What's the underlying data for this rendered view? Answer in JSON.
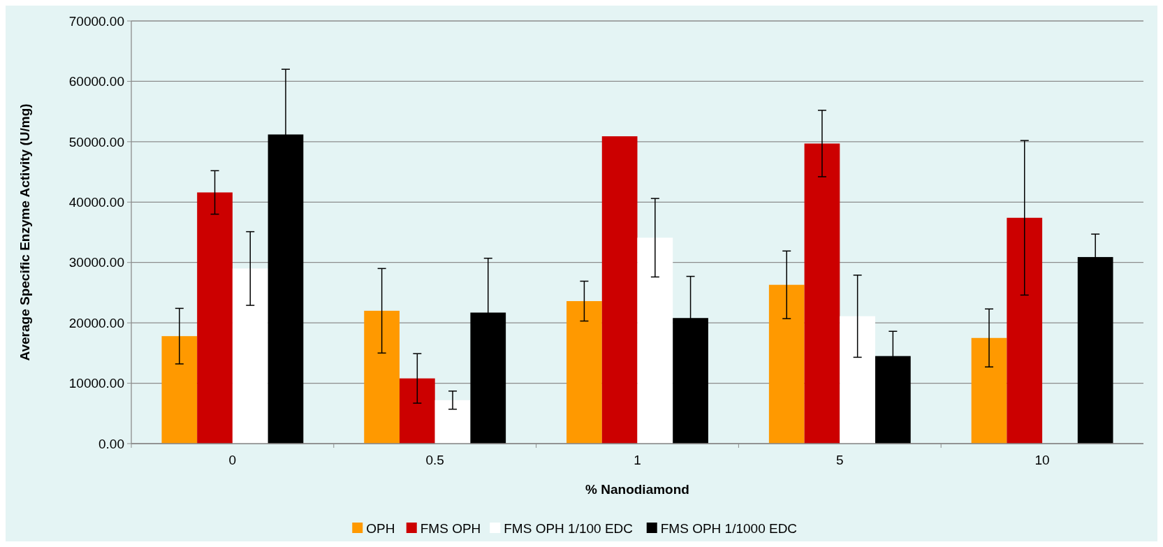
{
  "chart_data": {
    "type": "bar",
    "xlabel": "% Nanodiamond",
    "ylabel": "Average Specific Enzyme Activity (U/mg)",
    "categories": [
      "0",
      "0.5",
      "1",
      "5",
      "10"
    ],
    "series": [
      {
        "name": "OPH",
        "color": "#ff9900",
        "values": [
          17800,
          22000,
          23600,
          26300,
          17500
        ],
        "errors": [
          4600,
          7000,
          3300,
          5600,
          4800
        ]
      },
      {
        "name": "FMS OPH",
        "color": "#cc0000",
        "values": [
          41600,
          10800,
          50900,
          49700,
          37400
        ],
        "errors": [
          3600,
          4100,
          null,
          5500,
          12800
        ]
      },
      {
        "name": "FMS OPH 1/100 EDC",
        "color": "#ffffff",
        "values": [
          29000,
          7200,
          34100,
          21100,
          null
        ],
        "errors": [
          6100,
          1500,
          6500,
          6800,
          null
        ]
      },
      {
        "name": "FMS OPH 1/1000 EDC",
        "color": "#000000",
        "values": [
          51200,
          21700,
          20800,
          14500,
          30900
        ],
        "errors": [
          10800,
          9000,
          6900,
          4100,
          3800
        ]
      }
    ],
    "ylim": [
      0,
      70000
    ],
    "yticks": [
      {
        "value": 0,
        "label": "0.00"
      },
      {
        "value": 10000,
        "label": "10000.00"
      },
      {
        "value": 20000,
        "label": "20000.00"
      },
      {
        "value": 30000,
        "label": "30000.00"
      },
      {
        "value": 40000,
        "label": "40000.00"
      },
      {
        "value": 50000,
        "label": "50000.00"
      },
      {
        "value": 60000,
        "label": "60000.00"
      },
      {
        "value": 70000,
        "label": "70000.00"
      }
    ],
    "grid": "y",
    "legend": "bottom"
  }
}
